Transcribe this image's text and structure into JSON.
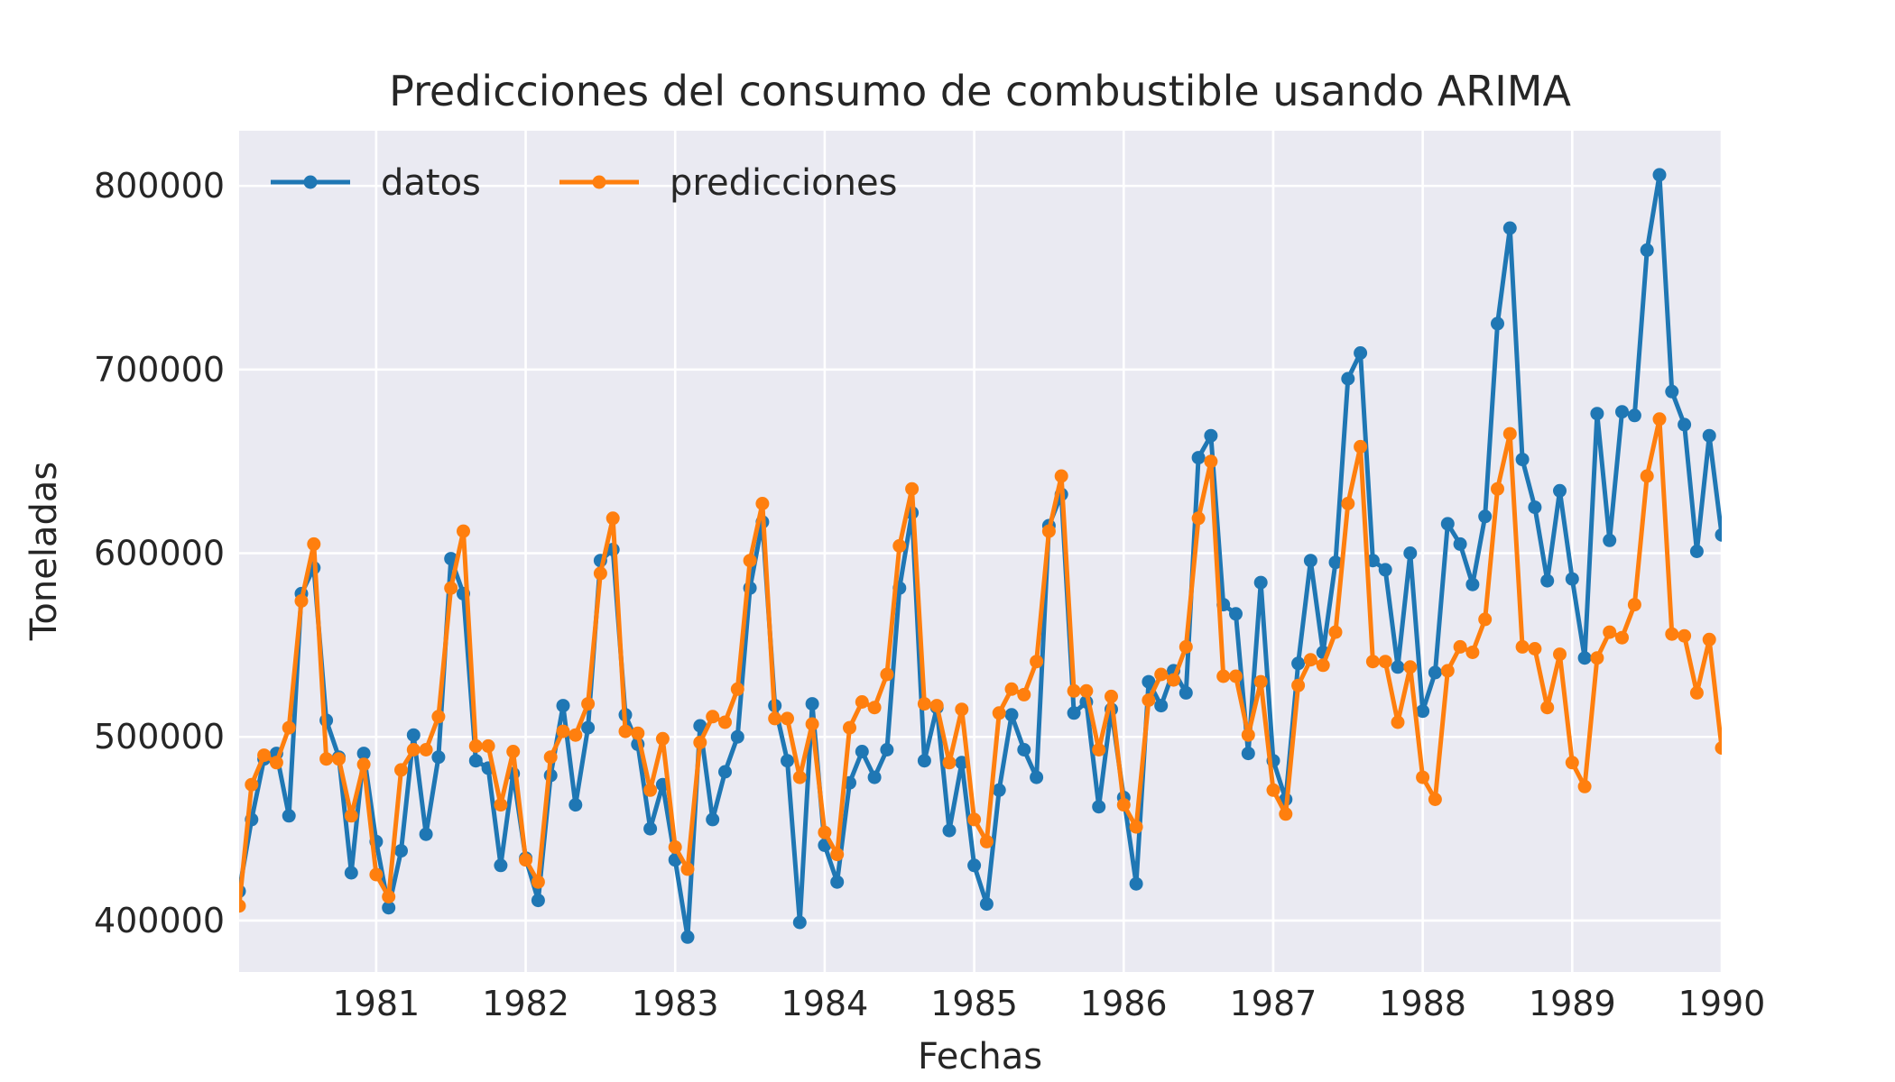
{
  "chart_data": {
    "type": "line",
    "title": "Predicciones del consumo de combustible usando ARIMA",
    "xlabel": "Fechas",
    "ylabel": "Toneladas",
    "xlim": [
      "1980-02",
      "1990-01"
    ],
    "ylim": [
      372000,
      830000
    ],
    "x_ticks": [
      "1981",
      "1982",
      "1983",
      "1984",
      "1985",
      "1986",
      "1987",
      "1988",
      "1989",
      "1990"
    ],
    "y_ticks": [
      400000,
      500000,
      600000,
      700000,
      800000
    ],
    "grid": true,
    "legend_position": "top-left",
    "x_start": "1980-02",
    "series": [
      {
        "name": "datos",
        "color": "#1f77b4",
        "values": [
          416000,
          455000,
          488000,
          491000,
          457000,
          578000,
          592000,
          509000,
          489000,
          426000,
          491000,
          443000,
          407000,
          438000,
          501000,
          447000,
          489000,
          597000,
          578000,
          487000,
          483000,
          430000,
          480000,
          434000,
          411000,
          479000,
          517000,
          463000,
          505000,
          596000,
          602000,
          512000,
          496000,
          450000,
          474000,
          433000,
          391000,
          506000,
          455000,
          481000,
          500000,
          581000,
          617000,
          517000,
          487000,
          399000,
          518000,
          441000,
          421000,
          475000,
          492000,
          478000,
          493000,
          581000,
          622000,
          487000,
          516000,
          449000,
          486000,
          430000,
          409000,
          471000,
          512000,
          493000,
          478000,
          615000,
          632000,
          513000,
          519000,
          462000,
          515000,
          467000,
          420000,
          530000,
          517000,
          536000,
          524000,
          652000,
          664000,
          572000,
          567000,
          491000,
          584000,
          487000,
          466000,
          540000,
          596000,
          546000,
          595000,
          695000,
          709000,
          596000,
          591000,
          538000,
          600000,
          514000,
          535000,
          616000,
          605000,
          583000,
          620000,
          725000,
          777000,
          651000,
          625000,
          585000,
          634000,
          586000,
          543000,
          676000,
          607000,
          677000,
          675000,
          765000,
          806000,
          688000,
          670000,
          601000,
          664000,
          610000
        ]
      },
      {
        "name": "predicciones",
        "color": "#ff7f0e",
        "values": [
          408000,
          474000,
          490000,
          486000,
          505000,
          574000,
          605000,
          488000,
          488000,
          457000,
          485000,
          425000,
          413000,
          482000,
          493000,
          493000,
          511000,
          581000,
          612000,
          495000,
          495000,
          463000,
          492000,
          433000,
          421000,
          489000,
          503000,
          501000,
          518000,
          589000,
          619000,
          503000,
          502000,
          471000,
          499000,
          440000,
          428000,
          497000,
          511000,
          508000,
          526000,
          596000,
          627000,
          510000,
          510000,
          478000,
          507000,
          448000,
          436000,
          505000,
          519000,
          516000,
          534000,
          604000,
          635000,
          518000,
          517000,
          486000,
          515000,
          455000,
          443000,
          513000,
          526000,
          523000,
          541000,
          612000,
          642000,
          525000,
          525000,
          493000,
          522000,
          463000,
          451000,
          520000,
          534000,
          531000,
          549000,
          619000,
          650000,
          533000,
          533000,
          501000,
          530000,
          471000,
          458000,
          528000,
          542000,
          539000,
          557000,
          627000,
          658000,
          541000,
          541000,
          508000,
          538000,
          478000,
          466000,
          536000,
          549000,
          546000,
          564000,
          635000,
          665000,
          549000,
          548000,
          516000,
          545000,
          486000,
          473000,
          543000,
          557000,
          554000,
          572000,
          642000,
          673000,
          556000,
          555000,
          524000,
          553000,
          494000
        ]
      }
    ]
  }
}
